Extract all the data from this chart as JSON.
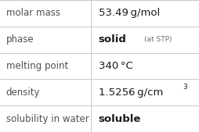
{
  "rows": [
    {
      "label": "molar mass",
      "value_main": "53.49 g/mol",
      "value_extra": "",
      "value_super": ""
    },
    {
      "label": "phase",
      "value_main": "solid",
      "value_extra": " (at STP)",
      "value_super": ""
    },
    {
      "label": "melting point",
      "value_main": "340 °C",
      "value_extra": "",
      "value_super": ""
    },
    {
      "label": "density",
      "value_main": "1.5256 g/cm",
      "value_extra": "",
      "value_super": "3"
    },
    {
      "label": "solubility in water",
      "value_main": "soluble",
      "value_extra": "",
      "value_super": ""
    }
  ],
  "bold_main": [
    "phase",
    "solubility in water"
  ],
  "label_color": "#505050",
  "value_color": "#1a1a1a",
  "extra_color": "#707070",
  "grid_color": "#c8c8c8",
  "bg_color": "#ffffff",
  "label_fontsize": 8.5,
  "value_fontsize": 9.5,
  "small_fontsize": 6.5,
  "super_fontsize": 6.5,
  "col_split": 0.455
}
